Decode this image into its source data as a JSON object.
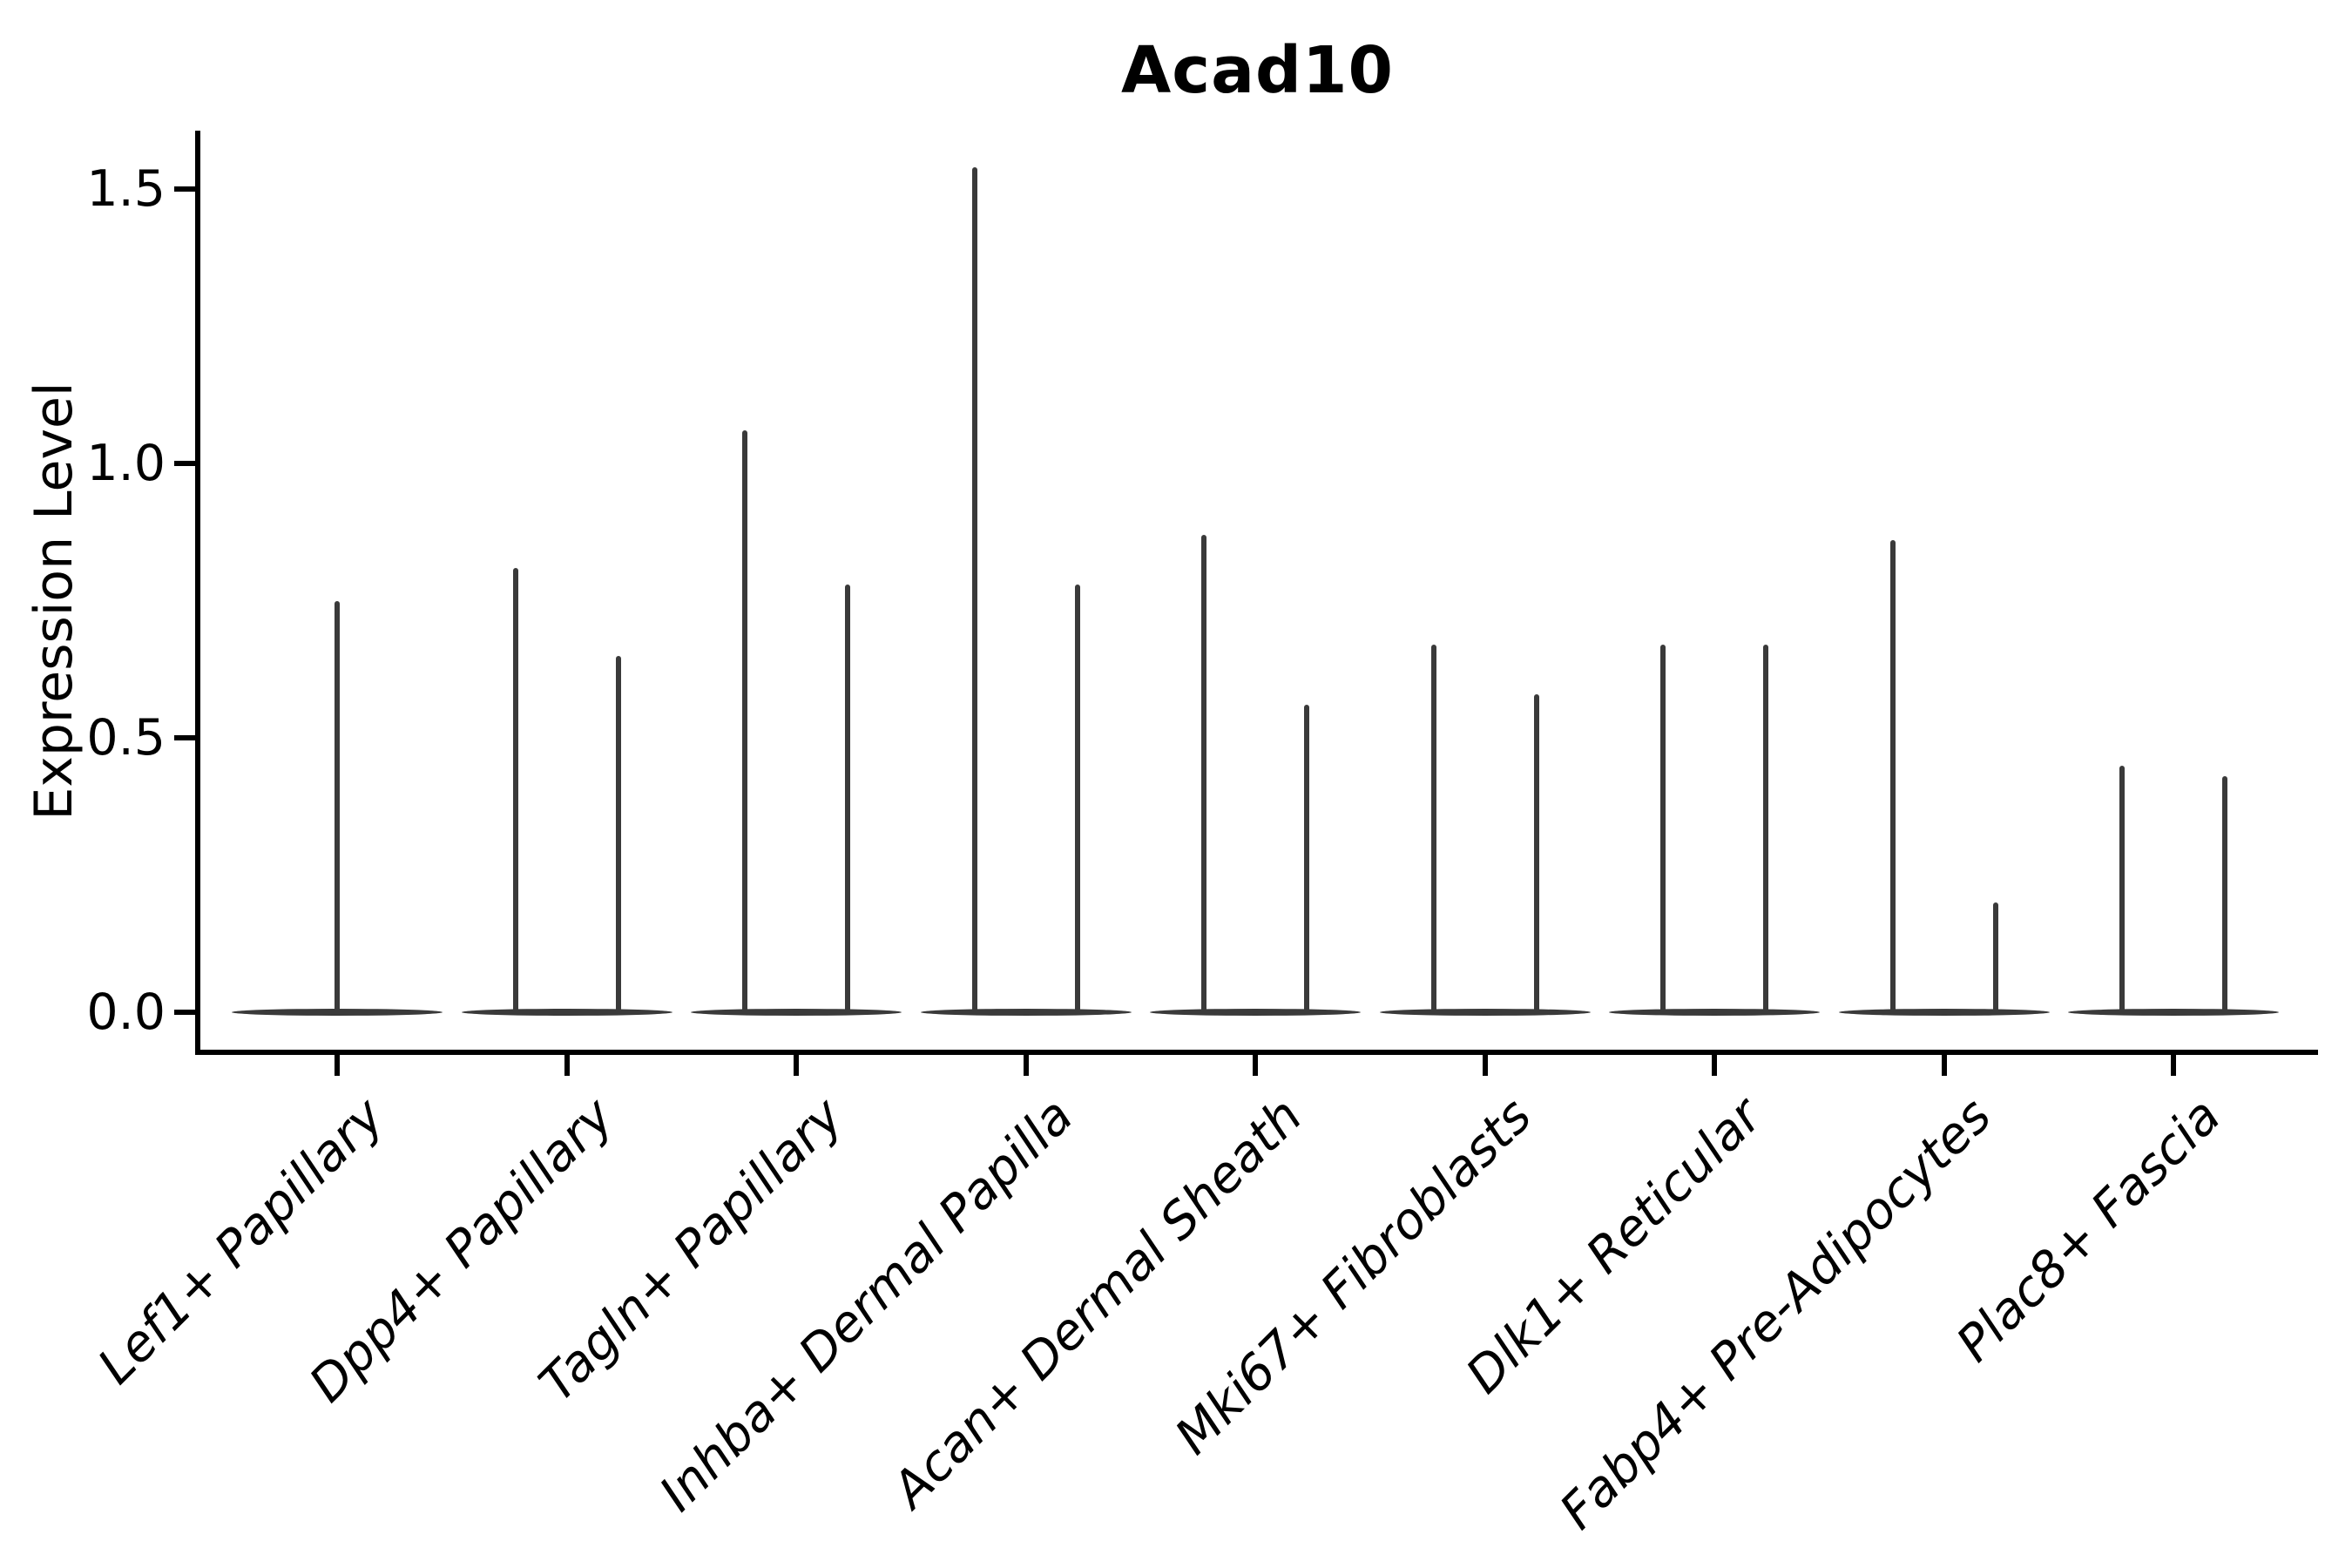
{
  "title": "Acad10",
  "chart_data": {
    "type": "violin",
    "title": "Acad10",
    "ylabel": "Expression Level",
    "xlabel": "",
    "ytick_values": [
      0.0,
      0.5,
      1.0,
      1.5
    ],
    "ytick_labels": [
      "0.0",
      "0.5",
      "1.0",
      "1.5"
    ],
    "ylim": [
      -0.07,
      1.61
    ],
    "grid": false,
    "legend": "none",
    "label_rotation_deg": 45,
    "categories": [
      "Lef1+ Papillary",
      "Dpp4+ Papillary",
      "Tagln+ Papillary",
      "Inhba+ Dermal Papilla",
      "Acan+ Dermal Sheath",
      "Mki67+ Fibroblasts",
      "Dlk1+ Reticular",
      "Fabp4+ Pre-Adipocytes",
      "Plac8+ Fascia"
    ],
    "violins": [
      {
        "category": "Lef1+ Papillary",
        "spike_maxima": [
          0.75
        ]
      },
      {
        "category": "Dpp4+ Papillary",
        "spike_maxima": [
          0.81,
          0.65
        ]
      },
      {
        "category": "Tagln+ Papillary",
        "spike_maxima": [
          1.06,
          0.78
        ]
      },
      {
        "category": "Inhba+ Dermal Papilla",
        "spike_maxima": [
          1.54,
          0.78
        ]
      },
      {
        "category": "Acan+ Dermal Sheath",
        "spike_maxima": [
          0.87,
          0.56
        ]
      },
      {
        "category": "Mki67+ Fibroblasts",
        "spike_maxima": [
          0.67,
          0.58
        ]
      },
      {
        "category": "Dlk1+ Reticular",
        "spike_maxima": [
          0.67,
          0.67
        ]
      },
      {
        "category": "Fabp4+ Pre-Adipocytes",
        "spike_maxima": [
          0.86,
          0.2
        ]
      },
      {
        "category": "Plac8+ Fascia",
        "spike_maxima": [
          0.45,
          0.43
        ]
      }
    ],
    "colors": {
      "violin": "#3a3a3a",
      "axis": "#000000",
      "text": "#000000",
      "background": "#ffffff"
    }
  }
}
